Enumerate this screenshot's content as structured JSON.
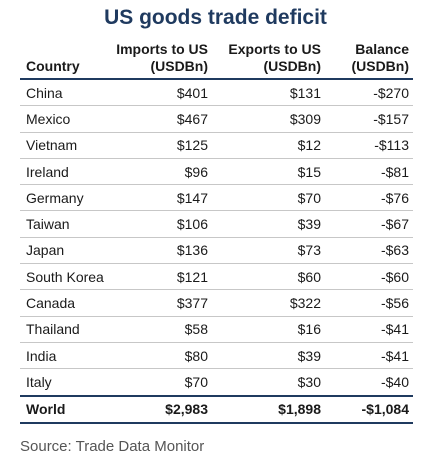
{
  "title": "US goods trade deficit",
  "columns": [
    {
      "line1": "Country",
      "line2": ""
    },
    {
      "line1": "Imports to US",
      "line2": "(USDBn)"
    },
    {
      "line1": "Exports to US",
      "line2": "(USDBn)"
    },
    {
      "line1": "Balance",
      "line2": "(USDBn)"
    }
  ],
  "rows": [
    {
      "country": "China",
      "imports": "$401",
      "exports": "$131",
      "balance": "-$270"
    },
    {
      "country": "Mexico",
      "imports": "$467",
      "exports": "$309",
      "balance": "-$157"
    },
    {
      "country": "Vietnam",
      "imports": "$125",
      "exports": "$12",
      "balance": "-$113"
    },
    {
      "country": "Ireland",
      "imports": "$96",
      "exports": "$15",
      "balance": "-$81"
    },
    {
      "country": "Germany",
      "imports": "$147",
      "exports": "$70",
      "balance": "-$76"
    },
    {
      "country": "Taiwan",
      "imports": "$106",
      "exports": "$39",
      "balance": "-$67"
    },
    {
      "country": "Japan",
      "imports": "$136",
      "exports": "$73",
      "balance": "-$63"
    },
    {
      "country": "South Korea",
      "imports": "$121",
      "exports": "$60",
      "balance": "-$60"
    },
    {
      "country": "Canada",
      "imports": "$377",
      "exports": "$322",
      "balance": "-$56"
    },
    {
      "country": "Thailand",
      "imports": "$58",
      "exports": "$16",
      "balance": "-$41"
    },
    {
      "country": "India",
      "imports": "$80",
      "exports": "$39",
      "balance": "-$41"
    },
    {
      "country": "Italy",
      "imports": "$70",
      "exports": "$30",
      "balance": "-$40"
    }
  ],
  "total": {
    "country": "World",
    "imports": "$2,983",
    "exports": "$1,898",
    "balance": "-$1,084"
  },
  "source": "Source: Trade Data Monitor"
}
